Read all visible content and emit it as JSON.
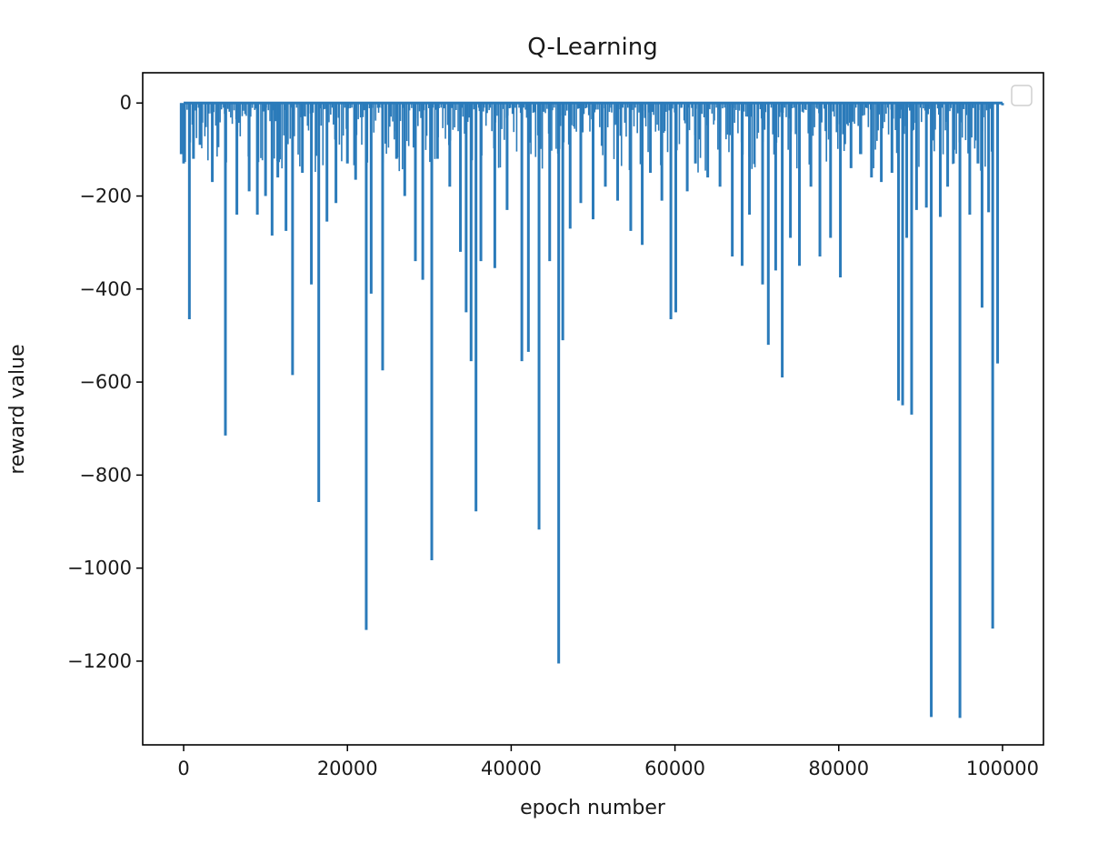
{
  "chart_data": {
    "type": "line",
    "title": "Q-Learning",
    "xlabel": "epoch number",
    "ylabel": "reward value",
    "xlim": [
      -5000,
      105000
    ],
    "ylim": [
      -1380,
      65
    ],
    "x_ticks": [
      0,
      20000,
      40000,
      60000,
      80000,
      100000
    ],
    "x_tick_labels": [
      "0",
      "20000",
      "40000",
      "60000",
      "80000",
      "100000"
    ],
    "y_ticks": [
      0,
      -200,
      -400,
      -600,
      -800,
      -1000,
      -1200
    ],
    "y_tick_labels": [
      "0",
      "−200",
      "−400",
      "−600",
      "−800",
      "−1000",
      "−1200"
    ],
    "grid": false,
    "legend": {
      "position": "top-right",
      "entries": []
    },
    "series": [
      {
        "color": "#2b7bba",
        "baseline": 0,
        "x": [
          0,
          700,
          1200,
          2000,
          3500,
          4200,
          5100,
          6500,
          8000,
          9000,
          10000,
          10800,
          11500,
          12500,
          13300,
          14500,
          15600,
          16500,
          17500,
          18600,
          20000,
          21000,
          22300,
          22900,
          24300,
          26000,
          27000,
          28300,
          29200,
          30300,
          31000,
          32500,
          33800,
          34500,
          35100,
          35700,
          36300,
          38000,
          39500,
          41300,
          42100,
          43400,
          44700,
          45800,
          46300,
          47200,
          48500,
          50000,
          51500,
          53000,
          54600,
          56000,
          57000,
          58400,
          59500,
          60100,
          61500,
          62500,
          64000,
          65500,
          67000,
          68200,
          69100,
          70700,
          71400,
          72300,
          73100,
          74100,
          75200,
          76600,
          77700,
          79000,
          80200,
          81500,
          82700,
          84000,
          85200,
          86500,
          87300,
          87800,
          88300,
          88900,
          89500,
          90700,
          91300,
          92400,
          93300,
          94000,
          94800,
          96000,
          97000,
          97500,
          98300,
          98800,
          99400,
          100000
        ],
        "values": [
          -130,
          -465,
          -120,
          -90,
          -170,
          -95,
          -715,
          -240,
          -190,
          -240,
          -200,
          -285,
          -160,
          -275,
          -585,
          -150,
          -390,
          -858,
          -255,
          -215,
          -130,
          -165,
          -1133,
          -410,
          -575,
          -120,
          -200,
          -340,
          -380,
          -983,
          -120,
          -180,
          -320,
          -450,
          -555,
          -878,
          -340,
          -355,
          -230,
          -555,
          -535,
          -917,
          -340,
          -1205,
          -510,
          -270,
          -215,
          -250,
          -180,
          -210,
          -275,
          -305,
          -150,
          -210,
          -465,
          -450,
          -190,
          -130,
          -160,
          -180,
          -330,
          -350,
          -240,
          -390,
          -520,
          -360,
          -590,
          -290,
          -350,
          -180,
          -330,
          -290,
          -375,
          -140,
          -110,
          -160,
          -170,
          -150,
          -640,
          -650,
          -290,
          -670,
          -230,
          -225,
          -1320,
          -245,
          -180,
          -130,
          -1322,
          -240,
          -130,
          -440,
          -235,
          -1130,
          -560,
          -5
        ]
      }
    ]
  }
}
